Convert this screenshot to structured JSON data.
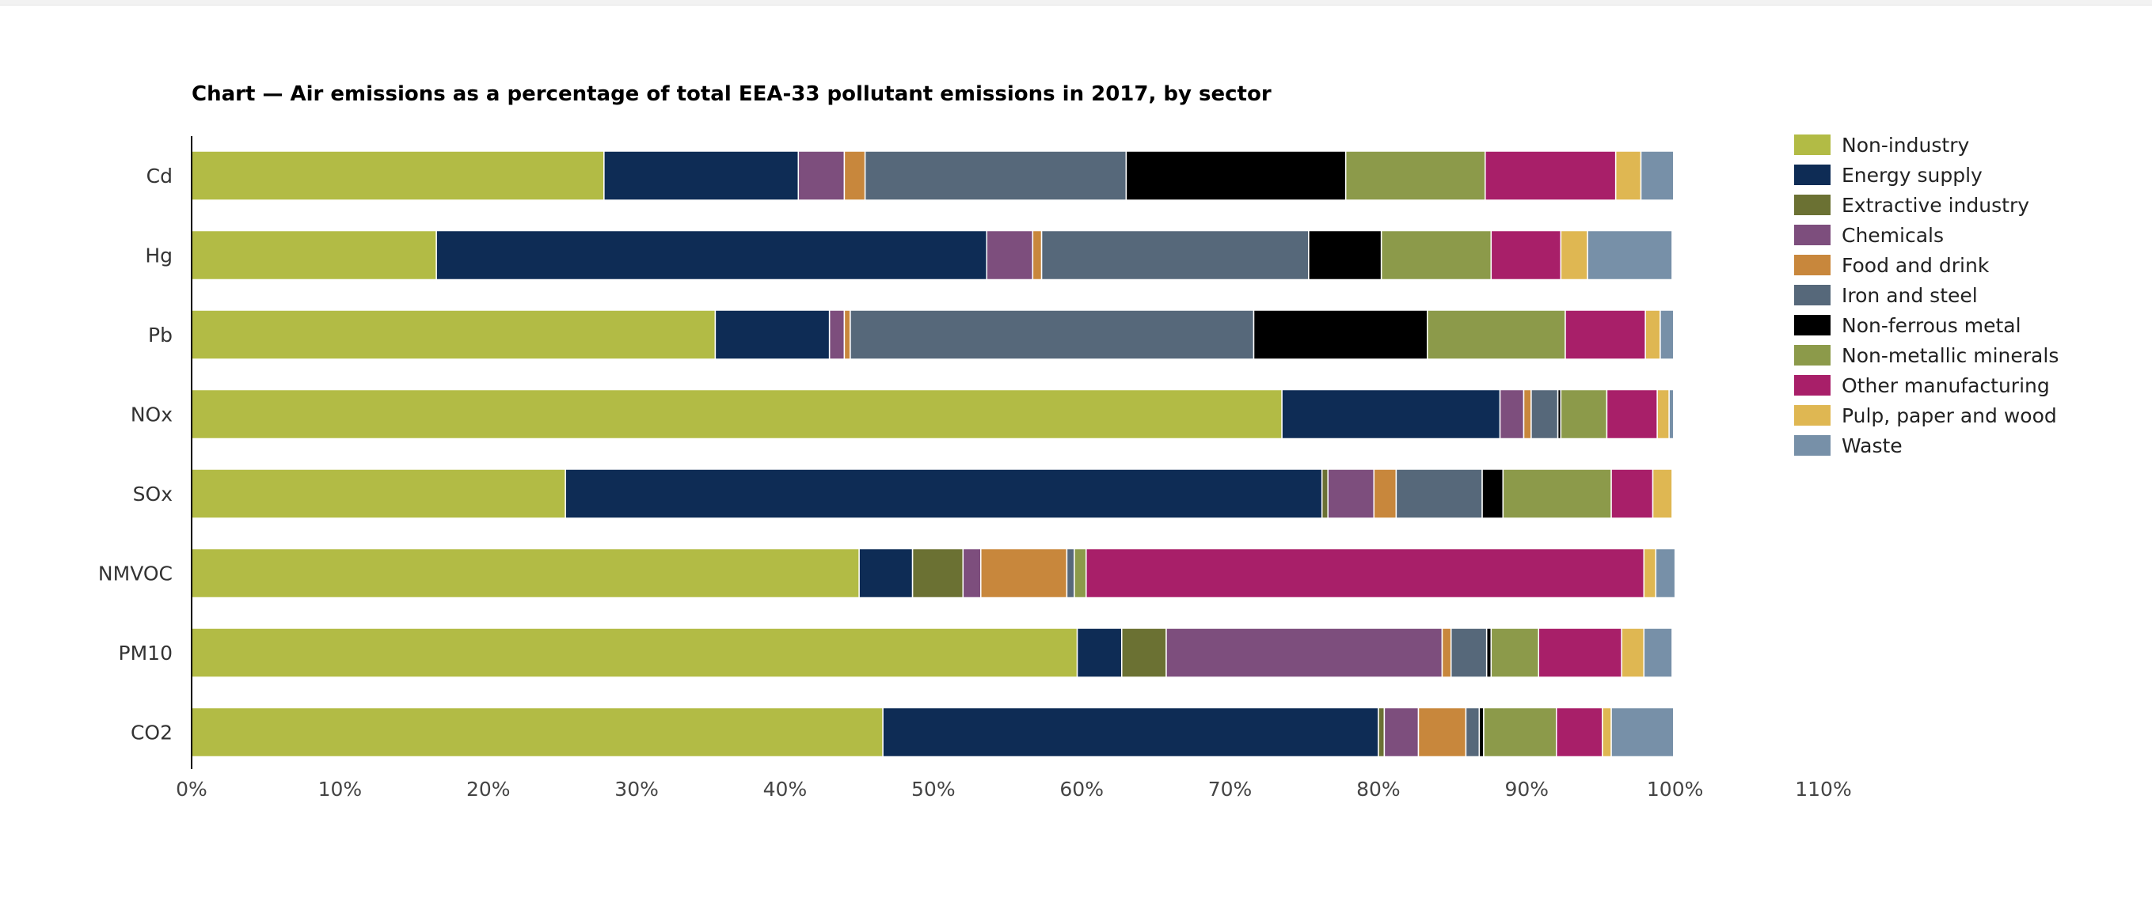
{
  "chart_data": {
    "type": "bar",
    "orientation": "horizontal",
    "stacked": true,
    "title": "Chart — Air emissions as a percentage of total EEA-33 pollutant emissions in 2017, by sector",
    "xlabel": "",
    "ylabel": "",
    "xlim": [
      0,
      110
    ],
    "x_ticks": [
      "0%",
      "10%",
      "20%",
      "30%",
      "40%",
      "50%",
      "60%",
      "70%",
      "80%",
      "90%",
      "100%",
      "110%"
    ],
    "grid": false,
    "legend_position": "right",
    "categories": [
      "Cd",
      "Hg",
      "Pb",
      "NOx",
      "SOx",
      "NMVOC",
      "PM10",
      "CO2"
    ],
    "series": [
      {
        "name": "Non-industry",
        "color": "#b2bb45",
        "values": [
          27.8,
          16.5,
          35.3,
          73.5,
          25.2,
          45.0,
          59.7,
          46.6
        ]
      },
      {
        "name": "Energy supply",
        "color": "#0e2c55",
        "values": [
          13.1,
          37.1,
          7.7,
          14.7,
          51.0,
          3.6,
          3.0,
          33.4
        ]
      },
      {
        "name": "Extractive industry",
        "color": "#6b7133",
        "values": [
          0,
          0,
          0,
          0,
          0.4,
          3.4,
          3.0,
          0.4
        ]
      },
      {
        "name": "Chemicals",
        "color": "#7d4e7d",
        "values": [
          3.1,
          3.1,
          1.0,
          1.6,
          3.1,
          1.2,
          18.6,
          2.3
        ]
      },
      {
        "name": "Food and drink",
        "color": "#c8873c",
        "values": [
          1.4,
          0.6,
          0.4,
          0.5,
          1.5,
          5.8,
          0.6,
          3.2
        ]
      },
      {
        "name": "Iron and steel",
        "color": "#56687a",
        "values": [
          17.6,
          18.0,
          27.2,
          1.8,
          5.8,
          0.5,
          2.4,
          0.9
        ]
      },
      {
        "name": "Non-ferrous metal",
        "color": "#000000",
        "values": [
          14.8,
          4.9,
          11.7,
          0.2,
          1.4,
          0,
          0.3,
          0.3
        ]
      },
      {
        "name": "Non-metallic minerals",
        "color": "#8c9a4a",
        "values": [
          9.4,
          7.4,
          9.3,
          3.1,
          7.3,
          0.8,
          3.2,
          4.9
        ]
      },
      {
        "name": "Other manufacturing",
        "color": "#a81f69",
        "values": [
          8.8,
          4.7,
          5.4,
          3.4,
          2.8,
          37.6,
          5.6,
          3.1
        ]
      },
      {
        "name": "Pulp, paper and wood",
        "color": "#dfb752",
        "values": [
          1.7,
          1.8,
          1.0,
          0.8,
          1.3,
          0.8,
          1.5,
          0.6
        ]
      },
      {
        "name": "Waste",
        "color": "#7790a8",
        "values": [
          2.2,
          5.7,
          0.9,
          0.3,
          0,
          1.3,
          1.9,
          4.2
        ]
      }
    ]
  }
}
